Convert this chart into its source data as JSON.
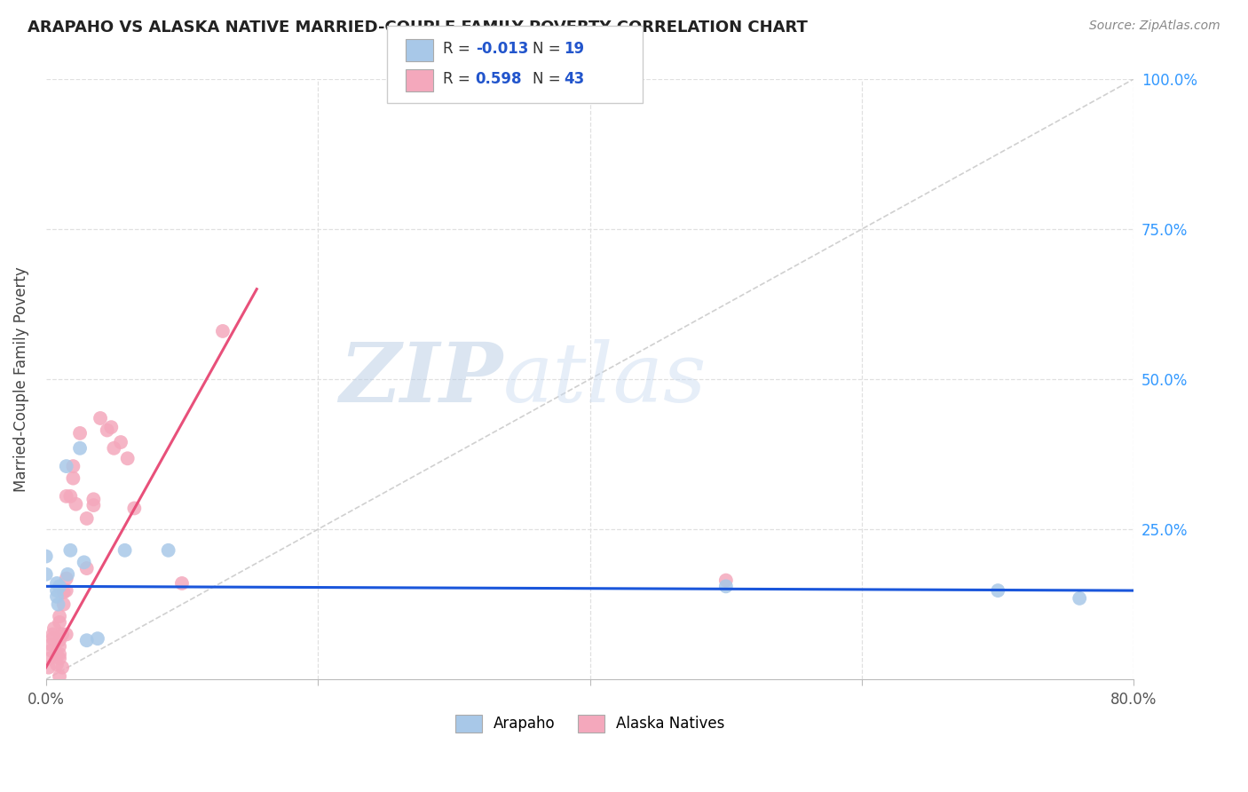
{
  "title": "ARAPAHO VS ALASKA NATIVE MARRIED-COUPLE FAMILY POVERTY CORRELATION CHART",
  "source": "Source: ZipAtlas.com",
  "ylabel": "Married-Couple Family Poverty",
  "x_min": 0.0,
  "x_max": 0.8,
  "y_min": 0.0,
  "y_max": 1.0,
  "arapaho_color": "#a8c8e8",
  "alaska_color": "#f4a8bc",
  "arapaho_R": -0.013,
  "arapaho_N": 19,
  "alaska_R": 0.598,
  "alaska_N": 43,
  "arapaho_points": [
    [
      0.0,
      0.175
    ],
    [
      0.0,
      0.205
    ],
    [
      0.008,
      0.16
    ],
    [
      0.008,
      0.148
    ],
    [
      0.008,
      0.138
    ],
    [
      0.009,
      0.125
    ],
    [
      0.01,
      0.155
    ],
    [
      0.015,
      0.355
    ],
    [
      0.016,
      0.175
    ],
    [
      0.018,
      0.215
    ],
    [
      0.025,
      0.385
    ],
    [
      0.028,
      0.195
    ],
    [
      0.03,
      0.065
    ],
    [
      0.038,
      0.068
    ],
    [
      0.058,
      0.215
    ],
    [
      0.09,
      0.215
    ],
    [
      0.5,
      0.155
    ],
    [
      0.7,
      0.148
    ],
    [
      0.76,
      0.135
    ]
  ],
  "alaska_points": [
    [
      0.002,
      0.02
    ],
    [
      0.003,
      0.035
    ],
    [
      0.004,
      0.048
    ],
    [
      0.004,
      0.058
    ],
    [
      0.005,
      0.068
    ],
    [
      0.005,
      0.075
    ],
    [
      0.006,
      0.085
    ],
    [
      0.008,
      0.025
    ],
    [
      0.008,
      0.042
    ],
    [
      0.01,
      0.005
    ],
    [
      0.01,
      0.035
    ],
    [
      0.01,
      0.042
    ],
    [
      0.01,
      0.055
    ],
    [
      0.01,
      0.065
    ],
    [
      0.01,
      0.095
    ],
    [
      0.01,
      0.105
    ],
    [
      0.012,
      0.02
    ],
    [
      0.012,
      0.075
    ],
    [
      0.013,
      0.125
    ],
    [
      0.013,
      0.145
    ],
    [
      0.015,
      0.075
    ],
    [
      0.015,
      0.148
    ],
    [
      0.015,
      0.168
    ],
    [
      0.015,
      0.305
    ],
    [
      0.018,
      0.305
    ],
    [
      0.02,
      0.335
    ],
    [
      0.02,
      0.355
    ],
    [
      0.022,
      0.292
    ],
    [
      0.025,
      0.41
    ],
    [
      0.03,
      0.268
    ],
    [
      0.03,
      0.185
    ],
    [
      0.035,
      0.29
    ],
    [
      0.035,
      0.3
    ],
    [
      0.04,
      0.435
    ],
    [
      0.045,
      0.415
    ],
    [
      0.048,
      0.42
    ],
    [
      0.05,
      0.385
    ],
    [
      0.055,
      0.395
    ],
    [
      0.06,
      0.368
    ],
    [
      0.065,
      0.285
    ],
    [
      0.1,
      0.16
    ],
    [
      0.13,
      0.58
    ],
    [
      0.5,
      0.165
    ]
  ],
  "diagonal_line_color": "#d0d0d0",
  "arapaho_line_color": "#1a56db",
  "alaska_line_color": "#e8507a",
  "alaska_line_x0": 0.0,
  "alaska_line_y0": 0.02,
  "alaska_line_x1": 0.155,
  "alaska_line_y1": 0.65,
  "arapaho_line_x0": 0.0,
  "arapaho_line_y0": 0.155,
  "arapaho_line_x1": 0.8,
  "arapaho_line_y1": 0.148,
  "watermark_color": "#c5d8f0",
  "background_color": "#ffffff",
  "grid_color": "#e0e0e0"
}
